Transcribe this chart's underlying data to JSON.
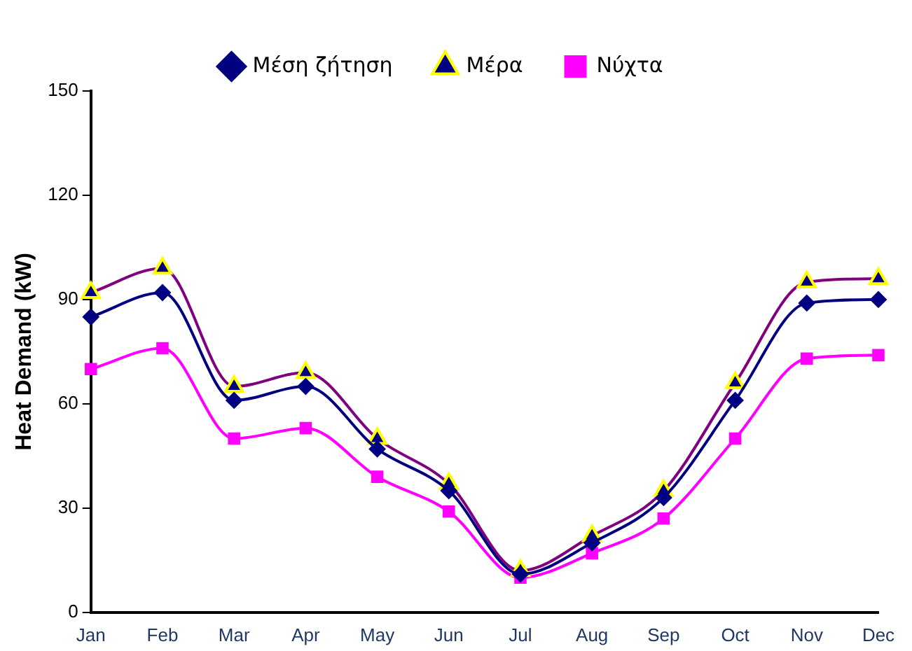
{
  "chart_data": {
    "type": "line",
    "ylabel": "Heat Demand (kW)",
    "categories": [
      "Jan",
      "Feb",
      "Mar",
      "Apr",
      "May",
      "Jun",
      "Jul",
      "Aug",
      "Sep",
      "Oct",
      "Nov",
      "Dec"
    ],
    "series": [
      {
        "name": "Μέση ζήτηση",
        "color": "#000080",
        "marker": "diamond",
        "values": [
          85,
          92,
          61,
          65,
          47,
          35,
          11,
          20,
          33,
          61,
          89,
          90
        ]
      },
      {
        "name": "Μέρα",
        "color": "#800080",
        "marker": "triangle",
        "values": [
          92,
          99,
          65,
          69,
          50,
          37,
          12,
          22,
          35,
          66,
          95,
          96
        ]
      },
      {
        "name": "Νύχτα",
        "color": "#ff00ff",
        "marker": "square",
        "values": [
          70,
          76,
          50,
          53,
          39,
          29,
          10,
          17,
          27,
          50,
          73,
          74
        ]
      }
    ],
    "ylim": [
      0,
      150
    ],
    "yticks": [
      0,
      30,
      60,
      90,
      120,
      150
    ],
    "grid": false,
    "legend": "top",
    "line_style": "solid"
  }
}
